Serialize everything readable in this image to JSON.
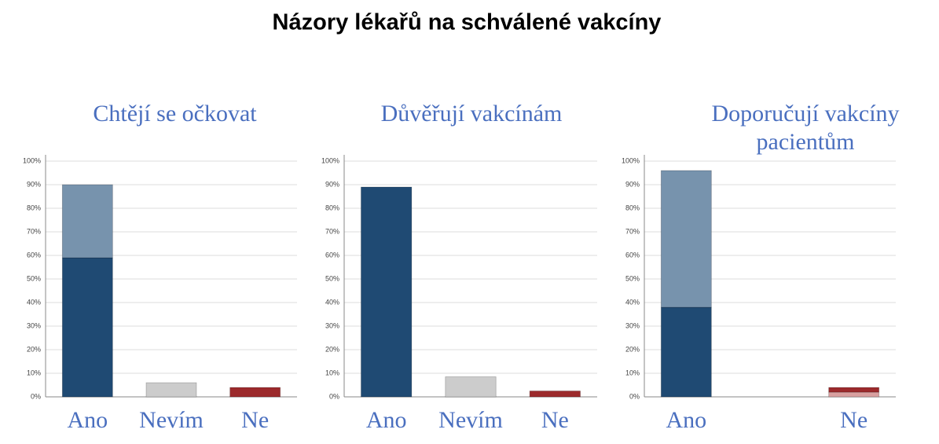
{
  "title": "Názory lékařů na schválené vakcíny",
  "chart_data": [
    {
      "type": "bar",
      "stacked": true,
      "subtitle": "Chtějí se očkovat",
      "categories": [
        "Ano",
        "Nevím",
        "Ne"
      ],
      "series": [
        {
          "color": "#1f4a73",
          "values": [
            59,
            null,
            null
          ]
        },
        {
          "color": "#7793ad",
          "values": [
            31,
            null,
            null
          ]
        },
        {
          "color": "#cccccc",
          "values": [
            null,
            6,
            null
          ]
        },
        {
          "color": "#9c2a2c",
          "values": [
            null,
            null,
            4
          ]
        }
      ],
      "ylim": [
        0,
        100
      ],
      "yticks": [
        {
          "value": 0,
          "label": "0%"
        },
        {
          "value": 10,
          "label": "10%"
        },
        {
          "value": 20,
          "label": "20%"
        },
        {
          "value": 30,
          "label": "30%"
        },
        {
          "value": 40,
          "label": "40%"
        },
        {
          "value": 50,
          "label": "50%"
        },
        {
          "value": 60,
          "label": "60%"
        },
        {
          "value": 70,
          "label": "70%"
        },
        {
          "value": 80,
          "label": "80%"
        },
        {
          "value": 90,
          "label": "90%"
        },
        {
          "value": 100,
          "label": "100%"
        }
      ],
      "grid": true
    },
    {
      "type": "bar",
      "stacked": true,
      "subtitle": "Důvěřují vakcínám",
      "categories": [
        "Ano",
        "Nevím",
        "Ne"
      ],
      "series": [
        {
          "color": "#1f4a73",
          "values": [
            89,
            null,
            null
          ]
        },
        {
          "color": "#cccccc",
          "values": [
            null,
            8.5,
            null
          ]
        },
        {
          "color": "#9c2a2c",
          "values": [
            null,
            null,
            2.5
          ]
        }
      ],
      "ylim": [
        0,
        100
      ],
      "yticks": [
        {
          "value": 0,
          "label": "0%"
        },
        {
          "value": 10,
          "label": "10%"
        },
        {
          "value": 20,
          "label": "20%"
        },
        {
          "value": 30,
          "label": "30%"
        },
        {
          "value": 40,
          "label": "40%"
        },
        {
          "value": 50,
          "label": "50%"
        },
        {
          "value": 60,
          "label": "60%"
        },
        {
          "value": 70,
          "label": "70%"
        },
        {
          "value": 80,
          "label": "80%"
        },
        {
          "value": 90,
          "label": "90%"
        },
        {
          "value": 100,
          "label": "100%"
        }
      ],
      "grid": true
    },
    {
      "type": "bar",
      "stacked": true,
      "subtitle": "Doporučují vakcíny pacientům",
      "categories": [
        "Ano",
        null,
        "Ne"
      ],
      "series": [
        {
          "color": "#1f4a73",
          "values": [
            38,
            null,
            null
          ]
        },
        {
          "color": "#7793ad",
          "values": [
            58,
            null,
            null
          ]
        },
        {
          "color": "#d9a0a0",
          "values": [
            null,
            null,
            2
          ]
        },
        {
          "color": "#9c2a2c",
          "values": [
            null,
            null,
            2
          ]
        }
      ],
      "ylim": [
        0,
        100
      ],
      "yticks": [
        {
          "value": 0,
          "label": "0%"
        },
        {
          "value": 10,
          "label": "10%"
        },
        {
          "value": 20,
          "label": "20%"
        },
        {
          "value": 30,
          "label": "30%"
        },
        {
          "value": 40,
          "label": "40%"
        },
        {
          "value": 50,
          "label": "50%"
        },
        {
          "value": 60,
          "label": "60%"
        },
        {
          "value": 70,
          "label": "70%"
        },
        {
          "value": 80,
          "label": "80%"
        },
        {
          "value": 90,
          "label": "90%"
        },
        {
          "value": 100,
          "label": "100%"
        }
      ],
      "grid": true
    }
  ]
}
